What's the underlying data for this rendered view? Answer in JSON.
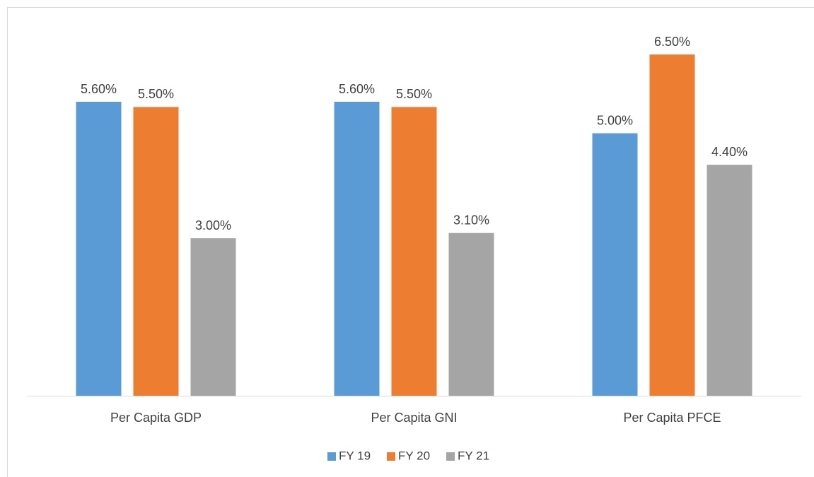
{
  "chart_data": {
    "type": "bar",
    "categories": [
      "Per Capita GDP",
      "Per Capita GNI",
      "Per Capita PFCE"
    ],
    "series": [
      {
        "name": "FY 19",
        "color": "#5b9bd5",
        "values": [
          5.6,
          5.6,
          5.0
        ],
        "value_labels": [
          "5.60%",
          "5.60%",
          "5.00%"
        ]
      },
      {
        "name": "FY 20",
        "color": "#ed7d31",
        "values": [
          5.5,
          5.5,
          6.5
        ],
        "value_labels": [
          "5.50%",
          "5.50%",
          "6.50%"
        ]
      },
      {
        "name": "FY 21",
        "color": "#a5a5a5",
        "values": [
          3.0,
          3.1,
          4.4
        ],
        "value_labels": [
          "3.00%",
          "3.10%",
          "4.40%"
        ]
      }
    ],
    "ylim": [
      0,
      7
    ],
    "grid": false,
    "legend": "bottom"
  }
}
